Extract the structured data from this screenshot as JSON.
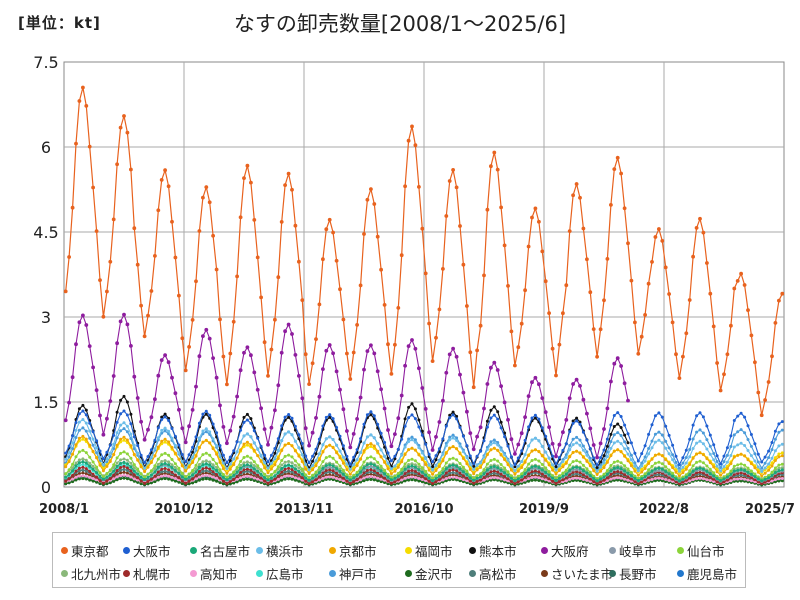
{
  "unit_label": "[単位：kt]",
  "chart_data": {
    "type": "line",
    "title": "なすの卸売数量[2008/1～2025/6]",
    "xlabel": "",
    "ylabel": "",
    "ylim": [
      0,
      7.5
    ],
    "yticks": [
      "0",
      "1.5",
      "3",
      "4.5",
      "6",
      "7.5"
    ],
    "xlim": [
      "2008/1",
      "2025/7"
    ],
    "xticks": [
      "2008/1",
      "2010/12",
      "2013/11",
      "2016/10",
      "2019/9",
      "2022/8",
      "2025/7"
    ],
    "grid": true,
    "legend_position": "bottom",
    "time_range": {
      "start": "2008-01",
      "end": "2025-06"
    },
    "series": [
      {
        "name": "東京都",
        "color": "#E8621E",
        "peaks": [
          7.1,
          6.35,
          5.65,
          5.15,
          5.75,
          5.4,
          4.8,
          5.15,
          6.5,
          5.5,
          6.05,
          4.85,
          5.5,
          5.75,
          4.7,
          4.7,
          3.9,
          3.4
        ],
        "troughs": [
          2.75,
          2.55,
          1.85,
          1.7,
          1.75,
          1.7,
          1.75,
          1.75,
          2.0,
          1.5,
          1.95,
          1.75,
          2.15,
          2.1,
          1.8,
          1.5,
          1.15
        ]
      },
      {
        "name": "大阪市",
        "color": "#1F5FD1",
        "peaks": [
          1.35,
          1.3,
          1.25,
          1.3,
          1.2,
          1.25,
          1.3,
          1.3,
          1.3,
          1.25,
          1.3,
          1.25,
          1.2,
          1.3,
          1.35,
          1.3,
          1.35,
          1.15
        ],
        "troughs": [
          0.45,
          0.4,
          0.4,
          0.4,
          0.4,
          0.4,
          0.35,
          0.4,
          0.4,
          0.35,
          0.35,
          0.35,
          0.35,
          0.4,
          0.35,
          0.35,
          0.4
        ]
      },
      {
        "name": "名古屋市",
        "color": "#1AA878",
        "peaks": [
          0.45,
          0.42,
          0.42,
          0.4,
          0.4,
          0.38,
          0.4,
          0.4,
          0.38,
          0.38,
          0.37,
          0.36,
          0.36,
          0.34,
          0.34,
          0.33,
          0.32,
          0.3
        ],
        "troughs": [
          0.12,
          0.12,
          0.12,
          0.12,
          0.11,
          0.11,
          0.11,
          0.11,
          0.1,
          0.1,
          0.1,
          0.1,
          0.1,
          0.1,
          0.1,
          0.1,
          0.1
        ]
      },
      {
        "name": "横浜市",
        "color": "#6BBDE8",
        "peaks": [
          1.2,
          1.1,
          1.05,
          1.0,
          0.95,
          0.95,
          0.9,
          0.9,
          0.85,
          0.85,
          0.8,
          0.85,
          0.8,
          0.8,
          0.85,
          0.8,
          0.8,
          0.75
        ],
        "troughs": [
          0.35,
          0.3,
          0.3,
          0.3,
          0.3,
          0.28,
          0.28,
          0.28,
          0.27,
          0.27,
          0.26,
          0.26,
          0.25,
          0.25,
          0.25,
          0.25,
          0.25
        ]
      },
      {
        "name": "京都市",
        "color": "#F0A800",
        "peaks": [
          0.9,
          0.85,
          0.85,
          0.8,
          0.8,
          0.75,
          0.75,
          0.75,
          0.7,
          0.7,
          0.7,
          0.65,
          0.65,
          0.65,
          0.6,
          0.6,
          0.6,
          0.55
        ],
        "troughs": [
          0.25,
          0.25,
          0.25,
          0.22,
          0.22,
          0.22,
          0.2,
          0.2,
          0.2,
          0.2,
          0.2,
          0.2,
          0.2,
          0.18,
          0.18,
          0.18,
          0.18
        ]
      },
      {
        "name": "福岡市",
        "color": "#F5DC00",
        "peaks": [
          0.85,
          0.8,
          0.8,
          0.8,
          0.75,
          0.75,
          0.75,
          0.7,
          0.7,
          0.7,
          0.7,
          0.65,
          0.65,
          0.65,
          0.6,
          0.6,
          0.6,
          0.6
        ],
        "troughs": [
          0.3,
          0.3,
          0.28,
          0.28,
          0.28,
          0.27,
          0.27,
          0.26,
          0.26,
          0.25,
          0.25,
          0.25,
          0.25,
          0.24,
          0.24,
          0.24,
          0.24
        ]
      },
      {
        "name": "熊本市",
        "color": "#111111",
        "peaks": [
          1.45,
          1.55,
          1.3,
          1.25,
          1.3,
          1.2,
          1.25,
          1.25,
          1.5,
          1.3,
          1.45,
          1.2,
          1.25,
          1.1
        ],
        "troughs": [
          0.35,
          0.3,
          0.3,
          0.3,
          0.3,
          0.3,
          0.3,
          0.3,
          0.3,
          0.3,
          0.3,
          0.3,
          0.3,
          0.3
        ]
      },
      {
        "name": "大阪府",
        "color": "#8E1C9E",
        "peaks": [
          3.05,
          2.95,
          2.35,
          2.7,
          2.5,
          2.8,
          2.55,
          2.45,
          2.65,
          2.4,
          2.25,
          1.9,
          1.95,
          2.25
        ],
        "troughs": [
          0.8,
          0.75,
          0.7,
          0.7,
          0.65,
          0.65,
          0.6,
          0.6,
          0.55,
          0.55,
          0.5,
          0.45,
          0.45
        ]
      },
      {
        "name": "岐阜市",
        "color": "#8A9AAA",
        "peaks": [
          0.45,
          0.42,
          0.4,
          0.4,
          0.38,
          0.38,
          0.36,
          0.36,
          0.35,
          0.35,
          0.34,
          0.33,
          0.32,
          0.32,
          0.3,
          0.3,
          0.3,
          0.28
        ],
        "troughs": [
          0.12,
          0.12,
          0.11,
          0.11,
          0.11,
          0.1,
          0.1,
          0.1,
          0.1,
          0.1,
          0.1,
          0.1,
          0.1,
          0.09,
          0.09,
          0.09,
          0.09
        ]
      },
      {
        "name": "仙台市",
        "color": "#8CD43A",
        "peaks": [
          0.65,
          0.6,
          0.6,
          0.58,
          0.55,
          0.55,
          0.55,
          0.52,
          0.5,
          0.5,
          0.5,
          0.48,
          0.48,
          0.45,
          0.45,
          0.45,
          0.42,
          0.4
        ],
        "troughs": [
          0.15,
          0.15,
          0.15,
          0.14,
          0.14,
          0.14,
          0.13,
          0.13,
          0.13,
          0.12,
          0.12,
          0.12,
          0.12,
          0.12,
          0.11,
          0.11,
          0.11
        ]
      },
      {
        "name": "北九州市",
        "color": "#8AB87A",
        "peaks": [
          0.5,
          0.48,
          0.47,
          0.45,
          0.45,
          0.44,
          0.43,
          0.42,
          0.42,
          0.4,
          0.4,
          0.38,
          0.38,
          0.37,
          0.36,
          0.35,
          0.35,
          0.34
        ],
        "troughs": [
          0.18,
          0.18,
          0.17,
          0.17,
          0.17,
          0.16,
          0.16,
          0.16,
          0.15,
          0.15,
          0.15,
          0.15,
          0.14,
          0.14,
          0.14,
          0.14,
          0.14
        ]
      },
      {
        "name": "札幌市",
        "color": "#9E2A2A",
        "peaks": [
          0.35,
          0.35,
          0.33,
          0.33,
          0.32,
          0.32,
          0.31,
          0.3,
          0.3,
          0.3,
          0.29,
          0.28,
          0.28,
          0.27,
          0.27,
          0.26,
          0.26,
          0.25
        ],
        "troughs": [
          0.05,
          0.05,
          0.05,
          0.05,
          0.05,
          0.05,
          0.05,
          0.05,
          0.05,
          0.05,
          0.05,
          0.05,
          0.05,
          0.05,
          0.05,
          0.05,
          0.05
        ]
      },
      {
        "name": "高知市",
        "color": "#F49AD2",
        "peaks": [
          0.2,
          0.2,
          0.2,
          0.2,
          0.19,
          0.19,
          0.18,
          0.18,
          0.18,
          0.17,
          0.17,
          0.17,
          0.16,
          0.16,
          0.16,
          0.15,
          0.15,
          0.15
        ],
        "troughs": [
          0.08,
          0.08,
          0.08,
          0.08,
          0.07,
          0.07,
          0.07,
          0.07,
          0.07,
          0.07,
          0.07,
          0.06,
          0.06,
          0.06,
          0.06,
          0.06,
          0.06
        ]
      },
      {
        "name": "広島市",
        "color": "#3FE0D0",
        "peaks": [
          0.4,
          0.38,
          0.38,
          0.37,
          0.36,
          0.36,
          0.35,
          0.34,
          0.34,
          0.33,
          0.33,
          0.32,
          0.32,
          0.31,
          0.3,
          0.3,
          0.3,
          0.29
        ],
        "troughs": [
          0.12,
          0.12,
          0.12,
          0.11,
          0.11,
          0.11,
          0.11,
          0.1,
          0.1,
          0.1,
          0.1,
          0.1,
          0.1,
          0.1,
          0.1,
          0.1,
          0.1
        ]
      },
      {
        "name": "神戸市",
        "color": "#4A9BD9",
        "peaks": [
          1.05,
          1.0,
          1.0,
          0.95,
          0.95,
          0.95,
          0.9,
          0.9,
          0.9,
          0.9,
          0.85,
          0.85,
          0.9,
          0.95,
          1.0,
          1.0,
          1.05,
          1.0
        ],
        "troughs": [
          0.3,
          0.3,
          0.3,
          0.3,
          0.28,
          0.28,
          0.28,
          0.27,
          0.27,
          0.27,
          0.26,
          0.26,
          0.26,
          0.28,
          0.3,
          0.3,
          0.3
        ]
      },
      {
        "name": "金沢市",
        "color": "#1E6B1E",
        "peaks": [
          0.15,
          0.15,
          0.15,
          0.14,
          0.14,
          0.14,
          0.14,
          0.13,
          0.13,
          0.13,
          0.13,
          0.12,
          0.12,
          0.12,
          0.12,
          0.12,
          0.11,
          0.11
        ],
        "troughs": [
          0.04,
          0.04,
          0.04,
          0.04,
          0.04,
          0.04,
          0.04,
          0.04,
          0.04,
          0.04,
          0.04,
          0.04,
          0.04,
          0.04,
          0.04,
          0.04,
          0.04
        ]
      },
      {
        "name": "高松市",
        "color": "#4E7E7A",
        "peaks": [
          0.3,
          0.3,
          0.28,
          0.28,
          0.28,
          0.27,
          0.27,
          0.26,
          0.26,
          0.25,
          0.25,
          0.25,
          0.24,
          0.24,
          0.23,
          0.23,
          0.22,
          0.22
        ],
        "troughs": [
          0.1,
          0.1,
          0.1,
          0.1,
          0.09,
          0.09,
          0.09,
          0.09,
          0.09,
          0.09,
          0.08,
          0.08,
          0.08,
          0.08,
          0.08,
          0.08,
          0.08
        ]
      },
      {
        "name": "さいたま市",
        "color": "#7A3A1A",
        "peaks": [
          0.25,
          0.25,
          0.24,
          0.24,
          0.23,
          0.23,
          0.22,
          0.22,
          0.22,
          0.21,
          0.21,
          0.2,
          0.2,
          0.2,
          0.19,
          0.19,
          0.18,
          0.18
        ],
        "troughs": [
          0.08,
          0.08,
          0.08,
          0.08,
          0.08,
          0.07,
          0.07,
          0.07,
          0.07,
          0.07,
          0.07,
          0.07,
          0.06,
          0.06,
          0.06,
          0.06,
          0.06
        ]
      },
      {
        "name": "長野市",
        "color": "#2E6E5E",
        "peaks": [
          0.18,
          0.18,
          0.18,
          0.17,
          0.17,
          0.17,
          0.16,
          0.16,
          0.16,
          0.15,
          0.15,
          0.15,
          0.14,
          0.14,
          0.14,
          0.13,
          0.13,
          0.13
        ],
        "troughs": [
          0.03,
          0.03,
          0.03,
          0.03,
          0.03,
          0.03,
          0.03,
          0.03,
          0.03,
          0.03,
          0.03,
          0.03,
          0.03,
          0.03,
          0.03,
          0.03,
          0.03
        ]
      },
      {
        "name": "鹿児島市",
        "color": "#2277CC",
        "peaks": [
          0.3,
          0.3,
          0.28,
          0.28,
          0.28,
          0.27,
          0.27,
          0.26,
          0.26,
          0.25,
          0.25,
          0.25,
          0.24,
          0.24,
          0.23,
          0.23,
          0.22,
          0.22
        ],
        "troughs": [
          0.08,
          0.08,
          0.08,
          0.08,
          0.08,
          0.08,
          0.07,
          0.07,
          0.07,
          0.07,
          0.07,
          0.07,
          0.07,
          0.06,
          0.06,
          0.06,
          0.06
        ]
      }
    ]
  }
}
